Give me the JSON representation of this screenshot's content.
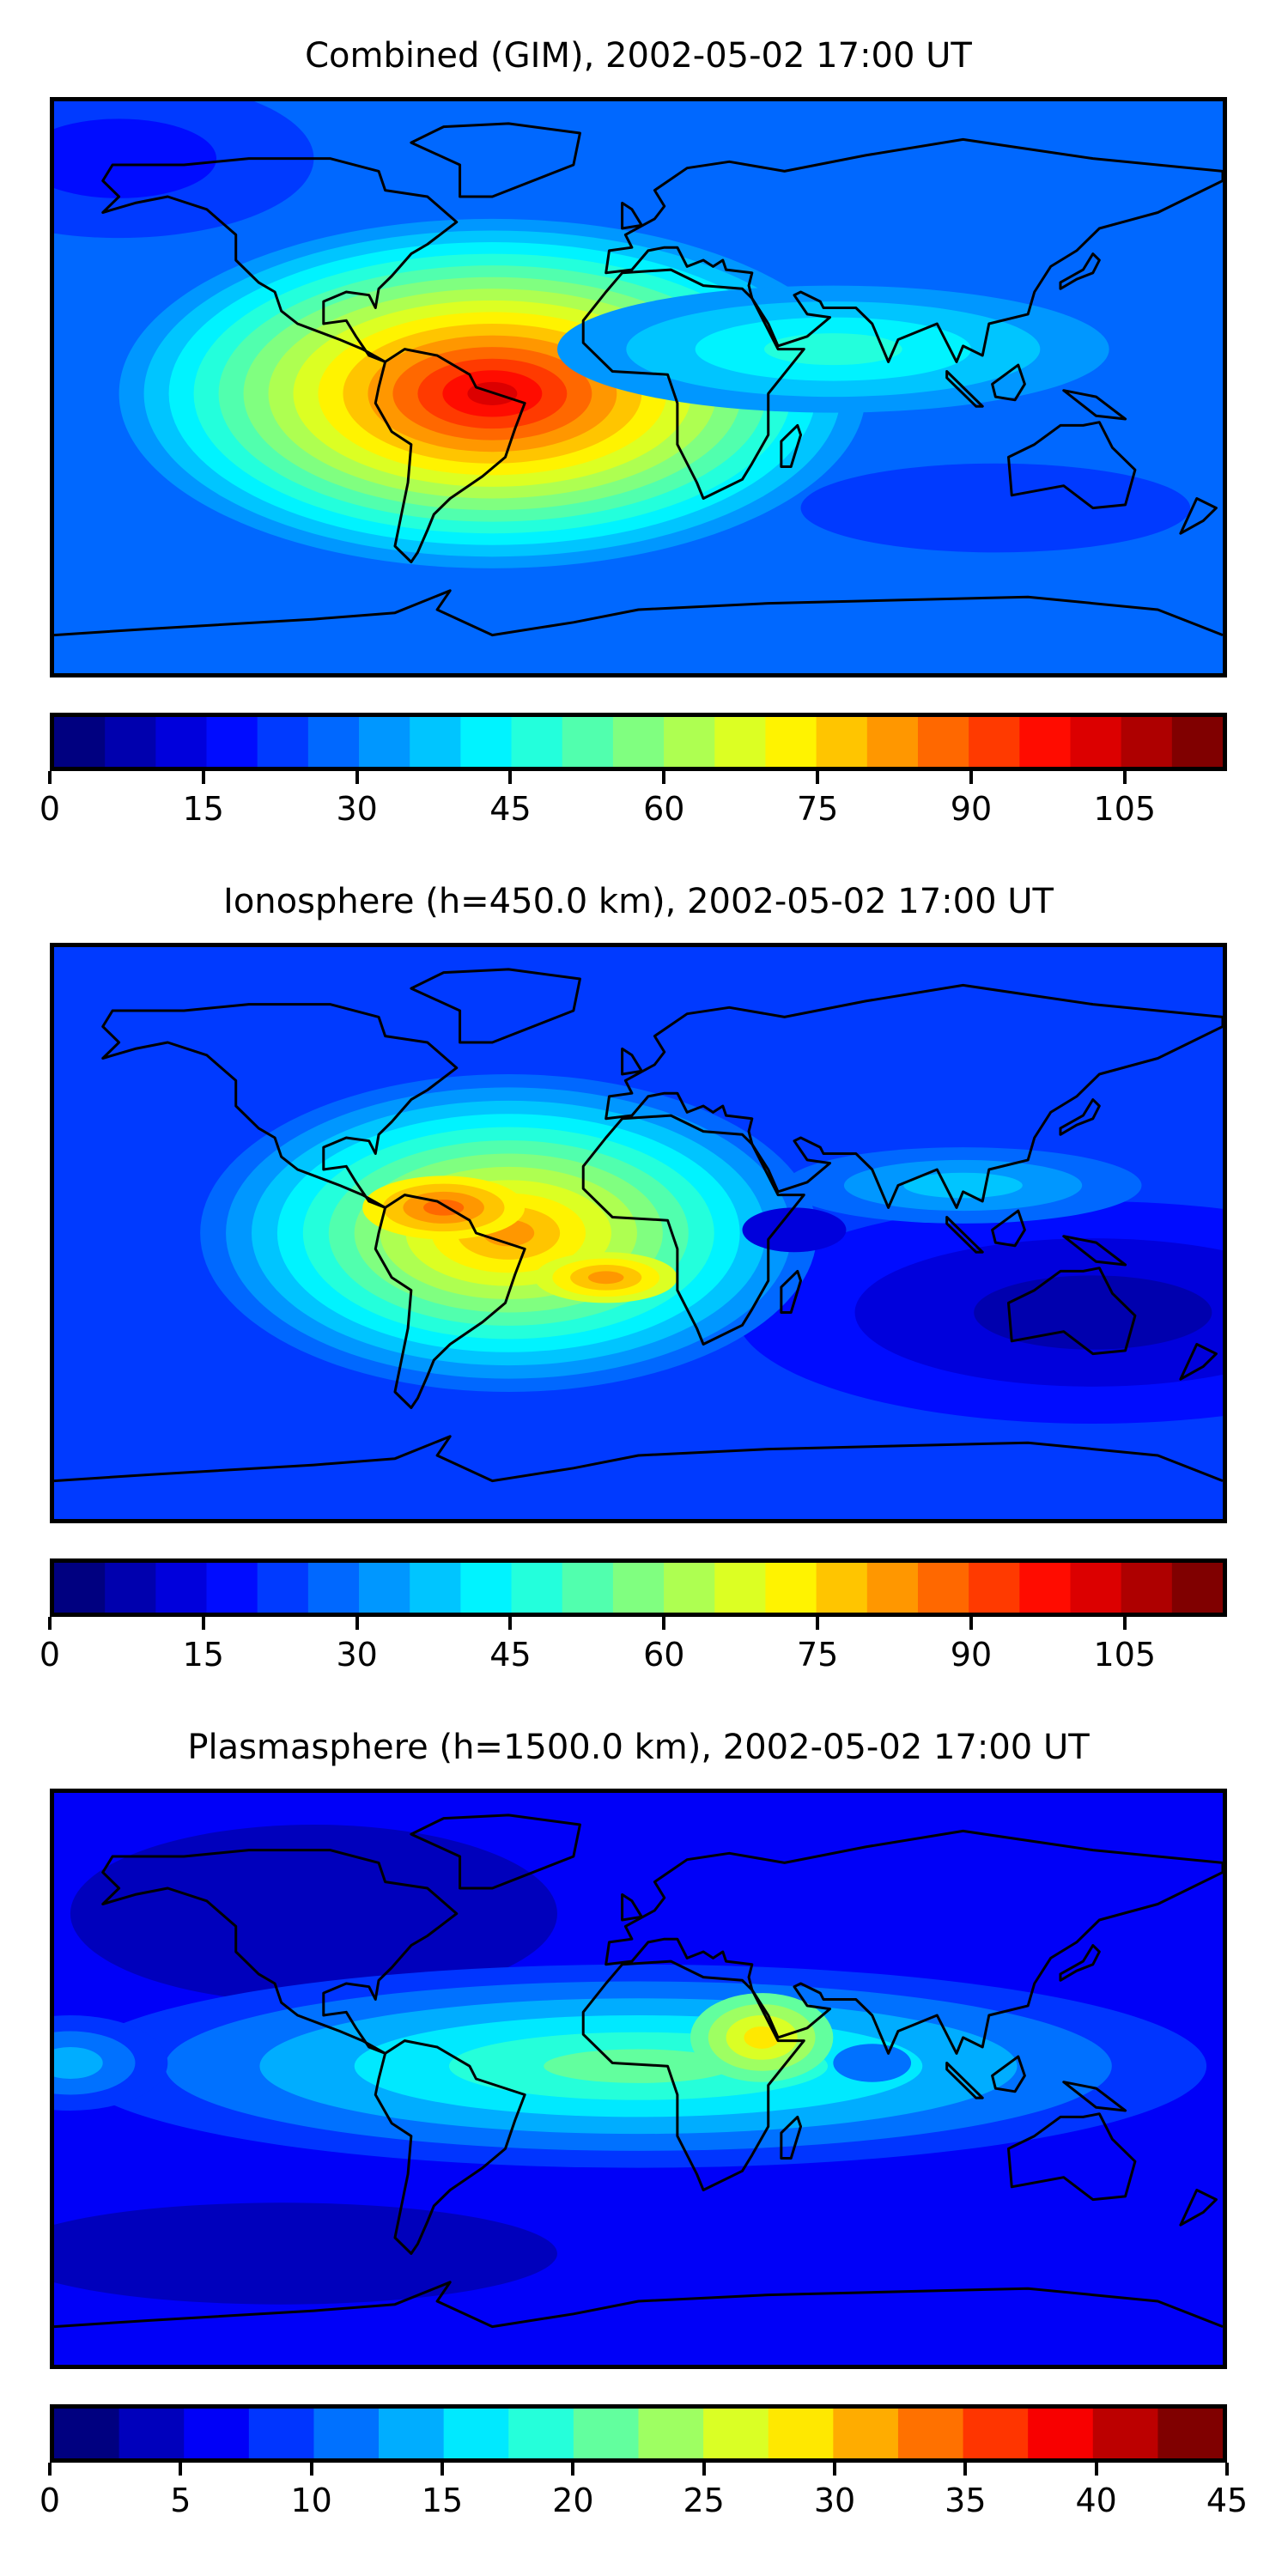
{
  "chart_data": [
    {
      "type": "heatmap",
      "title": "Combined (GIM), 2002-05-02 17:00 UT",
      "projection": "equirectangular",
      "lon_range": [
        -180,
        180
      ],
      "lat_range": [
        -90,
        90
      ],
      "colormap": "jet",
      "colorbar": {
        "min": 0,
        "max": 115,
        "step": 5,
        "ticks": [
          0,
          15,
          30,
          45,
          60,
          75,
          90,
          105
        ]
      },
      "background_level": 5,
      "regions": [
        {
          "name": "South America / Atlantic maximum",
          "lon": -45,
          "lat": -2,
          "rx": 115,
          "ry": 55,
          "levels": [
            6,
            20
          ]
        },
        {
          "name": "Equatorial Asia tongue",
          "lon": 60,
          "lat": 12,
          "rx": 85,
          "ry": 20,
          "levels": [
            6,
            9
          ]
        },
        {
          "name": "North Pacific low",
          "lon": -160,
          "lat": 72,
          "rx": 60,
          "ry": 25,
          "levels": [
            4,
            3
          ]
        },
        {
          "name": "South Pacific low",
          "lon": 110,
          "lat": -38,
          "rx": 60,
          "ry": 14,
          "levels": [
            4,
            4
          ]
        }
      ]
    },
    {
      "type": "heatmap",
      "title": "Ionosphere  (h=450.0 km), 2002-05-02 17:00 UT",
      "projection": "equirectangular",
      "lon_range": [
        -180,
        180
      ],
      "lat_range": [
        -90,
        90
      ],
      "colormap": "jet",
      "colorbar": {
        "min": 0,
        "max": 115,
        "step": 5,
        "ticks": [
          0,
          15,
          30,
          45,
          60,
          75,
          90,
          105
        ]
      },
      "background_level": 4,
      "regions": [
        {
          "name": "Australia / Pacific low",
          "lon": 140,
          "lat": -25,
          "rx": 110,
          "ry": 35,
          "levels": [
            3,
            1
          ]
        },
        {
          "name": "Americas / Atlantic maximum",
          "lon": -40,
          "lat": 0,
          "rx": 95,
          "ry": 50,
          "levels": [
            5,
            16
          ]
        },
        {
          "name": "Caribbean peak",
          "lon": -60,
          "lat": 8,
          "rx": 25,
          "ry": 10,
          "levels": [
            14,
            17
          ]
        },
        {
          "name": "South Atlantic peak",
          "lon": -10,
          "lat": -14,
          "rx": 22,
          "ry": 8,
          "levels": [
            13,
            16
          ]
        },
        {
          "name": "Asia band",
          "lon": 100,
          "lat": 15,
          "rx": 55,
          "ry": 12,
          "levels": [
            5,
            7
          ]
        },
        {
          "name": "East Africa low",
          "lon": 48,
          "lat": 1,
          "rx": 16,
          "ry": 7,
          "levels": [
            2,
            2
          ]
        }
      ]
    },
    {
      "type": "heatmap",
      "title": "Plasmasphere (h=1500.0 km), 2002-05-02 17:00 UT",
      "projection": "equirectangular",
      "lon_range": [
        -180,
        180
      ],
      "lat_range": [
        -90,
        90
      ],
      "colormap": "jet",
      "colorbar": {
        "min": 0,
        "max": 45,
        "step": 2.5,
        "ticks": [
          0,
          5,
          10,
          15,
          20,
          25,
          30,
          35,
          40,
          45
        ]
      },
      "background_level": 2,
      "regions": [
        {
          "name": "North America low",
          "lon": -100,
          "lat": 52,
          "rx": 75,
          "ry": 28,
          "levels": [
            1,
            1
          ]
        },
        {
          "name": "South Pacific low",
          "lon": -110,
          "lat": -55,
          "rx": 85,
          "ry": 16,
          "levels": [
            1,
            1
          ]
        },
        {
          "name": "Equatorial band",
          "lon": 0,
          "lat": 4,
          "rx": 175,
          "ry": 32,
          "levels": [
            3,
            8
          ]
        },
        {
          "name": "West Pacific band",
          "lon": -175,
          "lat": 5,
          "rx": 30,
          "ry": 15,
          "levels": [
            3,
            5
          ]
        },
        {
          "name": "Arabia / East Africa peak",
          "lon": 38,
          "lat": 13,
          "rx": 22,
          "ry": 14,
          "levels": [
            8,
            11
          ]
        },
        {
          "name": "Indian Ocean low",
          "lon": 72,
          "lat": 5,
          "rx": 12,
          "ry": 6,
          "levels": [
            4,
            4
          ]
        }
      ]
    }
  ]
}
